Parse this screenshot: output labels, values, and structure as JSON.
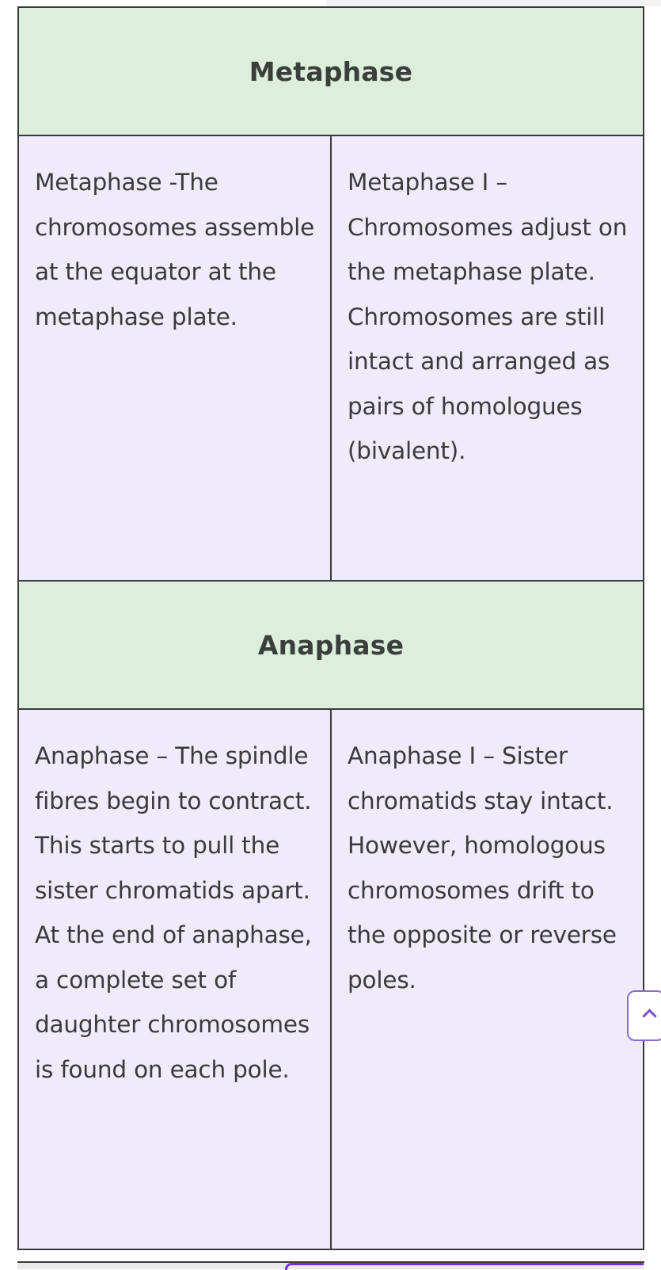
{
  "sections": [
    {
      "title": "Metaphase",
      "mitosis": "Metaphase -The chromosomes assemble at the equator at the metaphase plate.",
      "meiosis": "Metaphase I – Chromosomes adjust on the metaphase plate. Chromosomes are still intact and arranged as pairs of homologues (bivalent)."
    },
    {
      "title": "Anaphase",
      "mitosis": "Anaphase – The spindle fibres begin to contract. This starts to pull the sister chromatids apart. At the end of anaphase, a complete set of daughter chromosomes is found on each pole.",
      "meiosis": "Anaphase I – Sister chromatids stay intact. However, homologous chromosomes drift to the opposite or reverse poles."
    }
  ],
  "icons": {
    "scroll_top": "chevron-up-icon"
  },
  "colors": {
    "header_bg": "#ddeedd",
    "body_bg": "#efebfb",
    "accent": "#7b2fd8"
  }
}
